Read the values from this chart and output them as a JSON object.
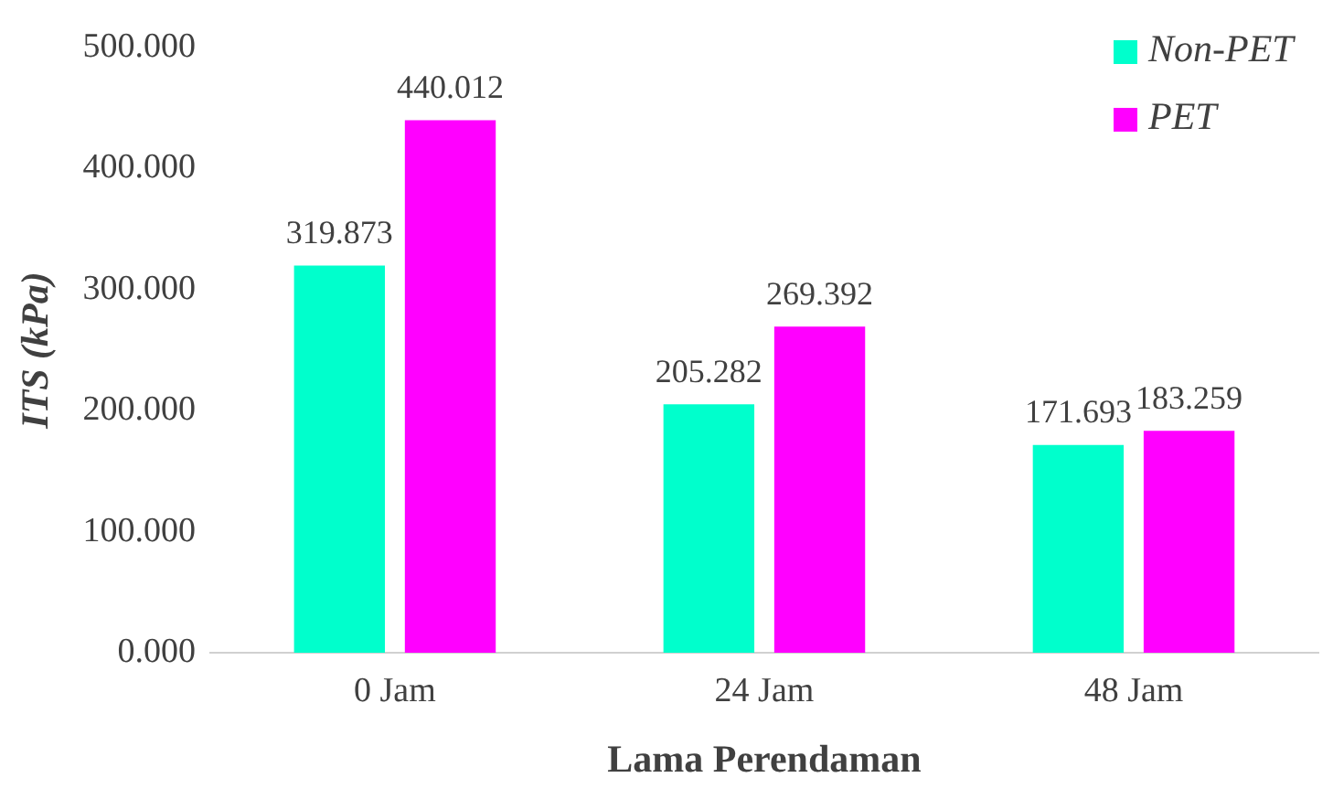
{
  "chart_data": {
    "type": "bar",
    "ylabel": "ITS (kPa)",
    "xlabel": "Lama Perendaman",
    "categories": [
      "0 Jam",
      "24 Jam",
      "48 Jam"
    ],
    "series": [
      {
        "name": "Non-PET",
        "color": "#00ffcc",
        "values": [
          319.873,
          205.282,
          171.693
        ]
      },
      {
        "name": "PET",
        "color": "#ff00ff",
        "values": [
          440.012,
          269.392,
          183.259
        ]
      }
    ],
    "ylim": [
      0,
      500
    ],
    "yticks": [
      {
        "value": 0,
        "label": "0.000"
      },
      {
        "value": 100,
        "label": "100.000"
      },
      {
        "value": 200,
        "label": "200.000"
      },
      {
        "value": 300,
        "label": "300.000"
      },
      {
        "value": 400,
        "label": "400.000"
      },
      {
        "value": 500,
        "label": "500.000"
      }
    ],
    "grid": false,
    "legend": "top right",
    "data_labels": true
  }
}
